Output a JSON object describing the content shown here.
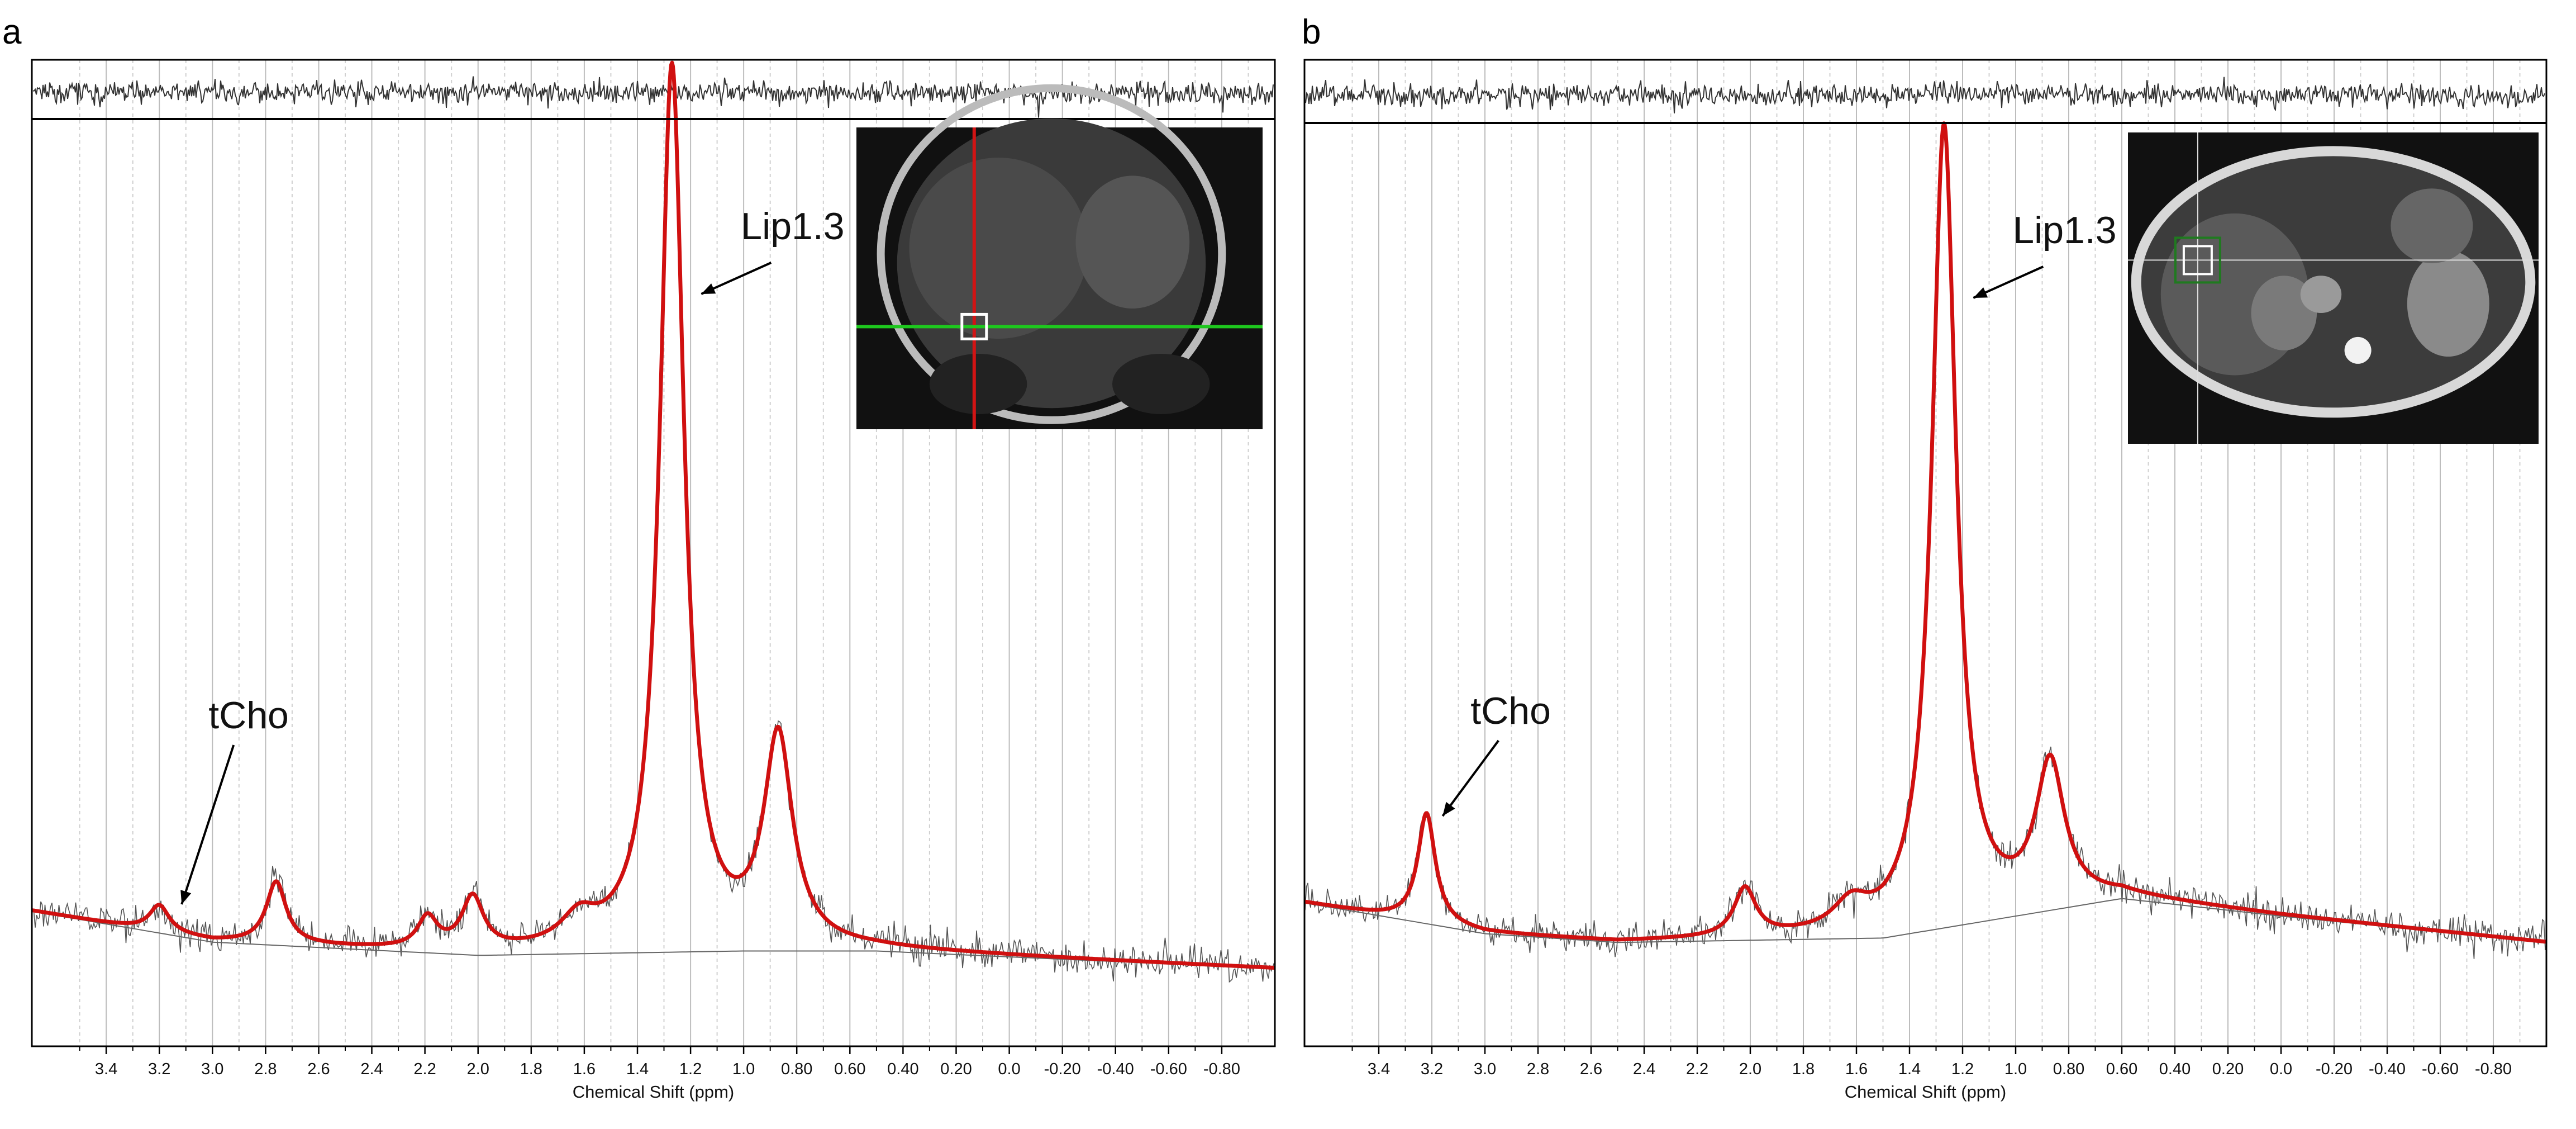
{
  "chart_data": [
    {
      "type": "line",
      "panel_label": "a",
      "xlabel": "Chemical Shift (ppm)",
      "ylabel": "",
      "x_axis_reversed": true,
      "xlim": [
        3.68,
        -1.0
      ],
      "x_ticks": [
        3.4,
        3.2,
        3.0,
        2.8,
        2.6,
        2.4,
        2.2,
        2.0,
        1.8,
        1.6,
        1.4,
        1.2,
        1.0,
        0.8,
        0.6,
        0.4,
        0.2,
        0.0,
        -0.2,
        -0.4,
        -0.6,
        -0.8
      ],
      "x_tick_labels": [
        "3.4",
        "3.2",
        "3.0",
        "2.8",
        "2.6",
        "2.4",
        "2.2",
        "2.0",
        "1.8",
        "1.6",
        "1.4",
        "1.2",
        "1.0",
        "0.80",
        "0.60",
        "0.40",
        "0.20",
        "0.0",
        "-0.20",
        "-0.40",
        "-0.60",
        "-0.80"
      ],
      "grid": true,
      "series": [
        {
          "role": "fitted spectrum",
          "color": "#d01010",
          "baseline": [
            [
              3.68,
              0.115
            ],
            [
              3.0,
              0.08
            ],
            [
              2.0,
              0.065
            ],
            [
              1.0,
              0.07
            ],
            [
              0.5,
              0.07
            ],
            [
              -1.0,
              0.05
            ]
          ],
          "peaks": [
            {
              "center": 3.2,
              "height": 0.03,
              "width": 0.045
            },
            {
              "center": 2.76,
              "height": 0.07,
              "width": 0.045
            },
            {
              "center": 2.19,
              "height": 0.035,
              "width": 0.045
            },
            {
              "center": 2.02,
              "height": 0.06,
              "width": 0.05
            },
            {
              "center": 1.62,
              "height": 0.03,
              "width": 0.08
            },
            {
              "center": 1.27,
              "height": 1.0,
              "width": 0.055
            },
            {
              "center": 0.87,
              "height": 0.235,
              "width": 0.065
            }
          ]
        },
        {
          "role": "raw spectrum",
          "color": "#555555"
        },
        {
          "role": "baseline",
          "color": "#666666",
          "baseline": [
            [
              3.68,
              0.115
            ],
            [
              3.0,
              0.08
            ],
            [
              2.0,
              0.065
            ],
            [
              1.0,
              0.07
            ],
            [
              0.5,
              0.07
            ],
            [
              -1.0,
              0.05
            ]
          ]
        },
        {
          "role": "residual",
          "color": "#333333"
        }
      ],
      "annotations": [
        {
          "text": "Lip1.3",
          "ppm": 1.17
        },
        {
          "text": "tCho",
          "ppm": 3.12
        }
      ],
      "inset": {
        "description": "MRI image with voxel",
        "crosshair_colors": [
          "#d21414",
          "#1ec81e"
        ],
        "voxel_color": "#ffffff"
      }
    },
    {
      "type": "line",
      "panel_label": "b",
      "xlabel": "Chemical Shift (ppm)",
      "ylabel": "",
      "x_axis_reversed": true,
      "xlim": [
        3.68,
        -1.0
      ],
      "x_ticks": [
        3.4,
        3.2,
        3.0,
        2.8,
        2.6,
        2.4,
        2.2,
        2.0,
        1.8,
        1.6,
        1.4,
        1.2,
        1.0,
        0.8,
        0.6,
        0.4,
        0.2,
        0.0,
        -0.2,
        -0.4,
        -0.6,
        -0.8
      ],
      "x_tick_labels": [
        "3.4",
        "3.2",
        "3.0",
        "2.8",
        "2.6",
        "2.4",
        "2.2",
        "2.0",
        "1.8",
        "1.6",
        "1.4",
        "1.2",
        "1.0",
        "0.80",
        "0.60",
        "0.40",
        "0.20",
        "0.0",
        "-0.20",
        "-0.40",
        "-0.60",
        "-0.80"
      ],
      "grid": true,
      "series": [
        {
          "role": "fitted spectrum",
          "color": "#d01010",
          "baseline": [
            [
              3.68,
              0.125
            ],
            [
              3.0,
              0.09
            ],
            [
              2.5,
              0.08
            ],
            [
              1.5,
              0.085
            ],
            [
              0.6,
              0.13
            ],
            [
              0.0,
              0.11
            ],
            [
              -1.0,
              0.08
            ]
          ],
          "peaks": [
            {
              "center": 3.22,
              "height": 0.125,
              "width": 0.04
            },
            {
              "center": 2.02,
              "height": 0.055,
              "width": 0.05
            },
            {
              "center": 1.62,
              "height": 0.03,
              "width": 0.08
            },
            {
              "center": 1.27,
              "height": 0.91,
              "width": 0.055
            },
            {
              "center": 0.87,
              "height": 0.16,
              "width": 0.065
            }
          ]
        },
        {
          "role": "raw spectrum",
          "color": "#555555"
        },
        {
          "role": "baseline",
          "color": "#666666",
          "baseline": [
            [
              3.68,
              0.125
            ],
            [
              3.0,
              0.09
            ],
            [
              2.5,
              0.08
            ],
            [
              1.5,
              0.085
            ],
            [
              0.6,
              0.13
            ],
            [
              0.0,
              0.11
            ],
            [
              -1.0,
              0.08
            ]
          ]
        },
        {
          "role": "residual",
          "color": "#333333"
        }
      ],
      "annotations": [
        {
          "text": "Lip1.3",
          "ppm": 1.17
        },
        {
          "text": "tCho",
          "ppm": 3.17
        }
      ],
      "inset": {
        "description": "Axial MRI image with voxel",
        "crosshair_colors": [
          "#dddddd",
          "#dddddd"
        ],
        "voxel_color": "#ffffff"
      }
    }
  ]
}
